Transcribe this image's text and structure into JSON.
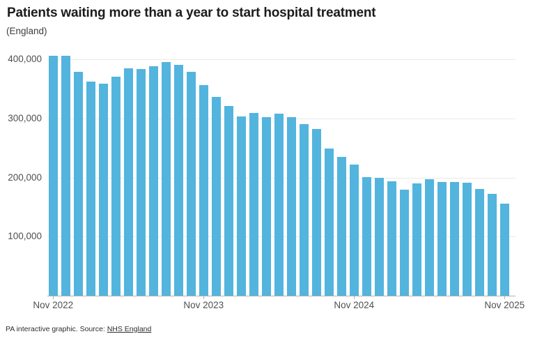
{
  "header": {
    "title": "Patients waiting more than a year to start hospital treatment",
    "subtitle": "(England)"
  },
  "footer": {
    "credit": "PA interactive graphic. Source: ",
    "source_link_label": "NHS England"
  },
  "colors": {
    "bar": "#53b4de",
    "gridline": "#e9e9e9",
    "axis_line": "#b0b0b0",
    "axis_text": "#4f4f4f"
  },
  "chart_data": {
    "type": "bar",
    "title": "Patients waiting more than a year to start hospital treatment",
    "subtitle": "(England)",
    "xlabel": "",
    "ylabel": "",
    "ylim": [
      0,
      400000
    ],
    "grid": true,
    "legend_position": "none",
    "y_ticks": [
      100000,
      200000,
      300000,
      400000
    ],
    "y_tick_labels": [
      "100,000",
      "200,000",
      "300,000",
      "400,000"
    ],
    "x_tick_indices": [
      0,
      12,
      24,
      36
    ],
    "x_tick_labels": [
      "Nov 2022",
      "Nov 2023",
      "Nov 2024",
      "Nov 2025"
    ],
    "categories": [
      "Nov 2022",
      "Dec 2022",
      "Jan 2023",
      "Feb 2023",
      "Mar 2023",
      "Apr 2023",
      "May 2023",
      "Jun 2023",
      "Jul 2023",
      "Aug 2023",
      "Sep 2023",
      "Oct 2023",
      "Nov 2023",
      "Dec 2023",
      "Jan 2024",
      "Feb 2024",
      "Mar 2024",
      "Apr 2024",
      "May 2024",
      "Jun 2024",
      "Jul 2024",
      "Aug 2024",
      "Sep 2024",
      "Oct 2024",
      "Nov 2024",
      "Dec 2024",
      "Jan 2025",
      "Feb 2025",
      "Mar 2025",
      "Apr 2025",
      "May 2025",
      "Jun 2025",
      "Jul 2025",
      "Aug 2025",
      "Sep 2025",
      "Oct 2025",
      "Nov 2025"
    ],
    "values": [
      406500,
      406000,
      379000,
      362500,
      359000,
      370800,
      384300,
      383000,
      388200,
      395300,
      391000,
      378400,
      355900,
      336300,
      320600,
      303600,
      309500,
      301700,
      307600,
      302400,
      289900,
      282000,
      248600,
      234800,
      221800,
      200600,
      199400,
      193500,
      179700,
      189600,
      197400,
      192700,
      192300,
      191500,
      180500,
      172600,
      156000
    ]
  }
}
